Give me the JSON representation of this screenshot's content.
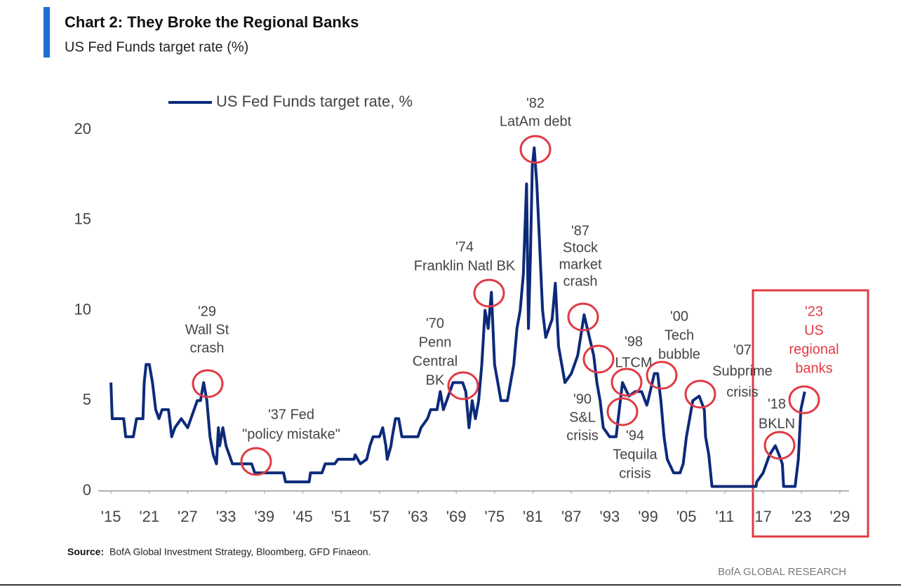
{
  "chart_data": {
    "type": "line",
    "title": "Chart 2: They Broke the Regional Banks",
    "subtitle": "US Fed Funds target rate (%)",
    "source_label": "Source:",
    "source": "BofA Global Investment Strategy, Bloomberg, GFD Finaeon.",
    "brand": "BofA GLOBAL RESEARCH",
    "xlim": [
      1914,
      2030
    ],
    "ylim": [
      0,
      20
    ],
    "xticks": [
      {
        "value": 1915,
        "label": "'15"
      },
      {
        "value": 1921,
        "label": "'21"
      },
      {
        "value": 1927,
        "label": "'27"
      },
      {
        "value": 1933,
        "label": "'33"
      },
      {
        "value": 1939,
        "label": "'39"
      },
      {
        "value": 1945,
        "label": "'45"
      },
      {
        "value": 1951,
        "label": "'51"
      },
      {
        "value": 1957,
        "label": "'57"
      },
      {
        "value": 1963,
        "label": "'63"
      },
      {
        "value": 1969,
        "label": "'69"
      },
      {
        "value": 1975,
        "label": "'75"
      },
      {
        "value": 1981,
        "label": "'81"
      },
      {
        "value": 1987,
        "label": "'87"
      },
      {
        "value": 1993,
        "label": "'93"
      },
      {
        "value": 1999,
        "label": "'99"
      },
      {
        "value": 2005,
        "label": "'05"
      },
      {
        "value": 2011,
        "label": "'11"
      },
      {
        "value": 2017,
        "label": "17"
      },
      {
        "value": 2023,
        "label": "'23"
      },
      {
        "value": 2029,
        "label": "'29"
      }
    ],
    "yticks": [
      0,
      5,
      10,
      15,
      20
    ],
    "grid": false,
    "legend": "top-left",
    "series": [
      {
        "name": "US Fed Funds target rate, %",
        "color": "#0d2a7a",
        "x": [
          1915,
          1915.2,
          1917,
          1917.3,
          1918.5,
          1919,
          1920,
          1920.2,
          1920.5,
          1921,
          1921.5,
          1922,
          1922.5,
          1923,
          1924,
          1924.5,
          1925,
          1926,
          1927,
          1927.5,
          1928,
          1928.5,
          1929,
          1929.5,
          1930,
          1930.5,
          1931,
          1931.5,
          1931.8,
          1932,
          1932.5,
          1933,
          1933.5,
          1934,
          1937,
          1937.5,
          1942,
          1942.3,
          1946,
          1946.2,
          1948,
          1948.5,
          1950,
          1950.5,
          1953,
          1953.2,
          1954,
          1955,
          1955.5,
          1956,
          1957,
          1957.5,
          1958,
          1958.2,
          1958.8,
          1959,
          1959.5,
          1960,
          1960.5,
          1963,
          1963.5,
          1964.5,
          1965,
          1966,
          1966.5,
          1967,
          1968,
          1968.5,
          1969,
          1970,
          1970.5,
          1971,
          1971.5,
          1972,
          1972.5,
          1973,
          1973.5,
          1974,
          1974.5,
          1975,
          1975.5,
          1976,
          1977,
          1977.5,
          1978,
          1978.5,
          1979,
          1979.5,
          1980,
          1980.3,
          1980.6,
          1980.9,
          1981.2,
          1981.6,
          1982,
          1982.5,
          1983,
          1984,
          1984.5,
          1985,
          1986,
          1987,
          1987.5,
          1988,
          1989,
          1989.5,
          1990,
          1990.5,
          1991,
          1991.5,
          1992,
          1993,
          1994,
          1994.5,
          1995,
          1996,
          1997,
          1998,
          1998.8,
          1999,
          2000,
          2000.5,
          2001,
          2001.5,
          2002,
          2003,
          2004,
          2004.5,
          2005,
          2006,
          2007,
          2007.8,
          2008,
          2008.5,
          2009,
          2015.9,
          2016,
          2017,
          2018,
          2018.9,
          2019.5,
          2020,
          2020.2,
          2022,
          2022.5,
          2022.9,
          2023.5
        ],
        "values": [
          6,
          4,
          4,
          3,
          3,
          4,
          4,
          6,
          7,
          7,
          6,
          4.5,
          4,
          4.5,
          4.5,
          3,
          3.5,
          4,
          3.5,
          4,
          4.5,
          5,
          5,
          6,
          5,
          3,
          2,
          1.5,
          3.5,
          2.5,
          3.5,
          2.5,
          2,
          1.5,
          1.5,
          1,
          1,
          0.5,
          0.5,
          1,
          1,
          1.5,
          1.5,
          1.75,
          1.75,
          2,
          1.5,
          1.75,
          2.5,
          3,
          3,
          3.5,
          2.5,
          1.75,
          2.5,
          3,
          4,
          4,
          3,
          3,
          3.5,
          4,
          4.5,
          4.5,
          5.5,
          4.5,
          5.5,
          6,
          6,
          6,
          5.5,
          3.5,
          5,
          4,
          5,
          7,
          10,
          9,
          11,
          7,
          6,
          5,
          5,
          6,
          7,
          9,
          10,
          12,
          17,
          9,
          13,
          18,
          19,
          17,
          14,
          10,
          8.5,
          9.5,
          11.5,
          8,
          6,
          6.5,
          7,
          7.5,
          9.75,
          9,
          8.25,
          7.5,
          6,
          5,
          3.5,
          3,
          3,
          4.5,
          6,
          5.25,
          5.5,
          5.5,
          4.75,
          5,
          6.5,
          6.5,
          5,
          3,
          1.75,
          1,
          1,
          1.5,
          3,
          5,
          5.25,
          4.5,
          3,
          2,
          0.25,
          0.25,
          0.5,
          1,
          2,
          2.5,
          2,
          1.5,
          0.25,
          0.25,
          1.75,
          4.5,
          5.5
        ]
      }
    ],
    "annotations": [
      {
        "lines": [
          "'29",
          "Wall St",
          "crash"
        ]
      },
      {
        "lines": [
          "'37 Fed",
          "\"policy mistake\""
        ]
      },
      {
        "lines": [
          "'70",
          "Penn",
          "Central",
          "BK"
        ]
      },
      {
        "lines": [
          "'74",
          "Franklin Natl BK"
        ]
      },
      {
        "lines": [
          "'82",
          "LatAm debt"
        ]
      },
      {
        "lines": [
          "'87",
          "Stock",
          "market",
          "crash"
        ]
      },
      {
        "lines": [
          "'90",
          "S&L",
          "crisis"
        ]
      },
      {
        "lines": [
          "'94",
          "Tequila",
          "crisis"
        ]
      },
      {
        "lines": [
          "'98",
          "LTCM"
        ]
      },
      {
        "lines": [
          "'00",
          "Tech",
          "bubble"
        ]
      },
      {
        "lines": [
          "'07",
          "Subprime",
          "crisis"
        ]
      },
      {
        "lines": [
          "'18",
          "BKLN"
        ]
      },
      {
        "lines": [
          "'23",
          "US",
          "regional",
          "banks"
        ]
      }
    ]
  }
}
